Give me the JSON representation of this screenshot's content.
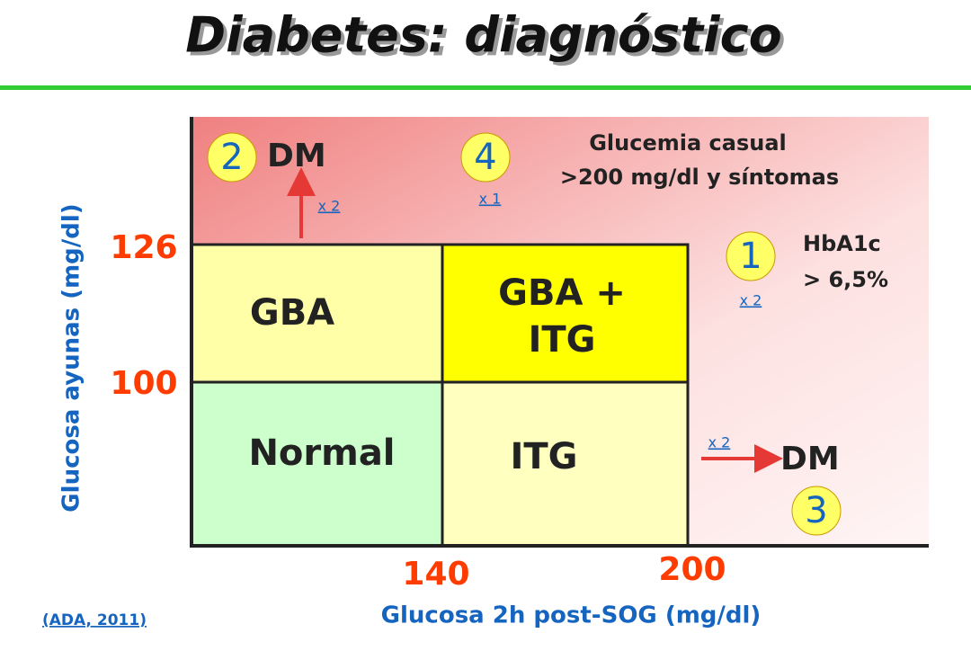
{
  "header": {
    "title": "Diabetes: diagnóstico"
  },
  "axes": {
    "y_label": "Glucosa ayunas (mg/dl)",
    "x_label": "Glucosa 2h post-SOG (mg/dl)",
    "y_ticks": [
      "126",
      "100"
    ],
    "x_ticks": [
      "140",
      "200"
    ]
  },
  "regions": {
    "gba": "GBA",
    "gba_itg": [
      "GBA +",
      "ITG"
    ],
    "normal": "Normal",
    "itg": "ITG"
  },
  "criteria": [
    {
      "number": "1",
      "label": [
        "HbA1c",
        "> 6,5%"
      ],
      "factor": "x 2"
    },
    {
      "number": "2",
      "label": "DM",
      "factor": "x 2"
    },
    {
      "number": "3",
      "label": "DM",
      "factor": "x 2"
    },
    {
      "number": "4",
      "label": [
        "Glucemia casual",
        ">200 mg/dl y síntomas"
      ],
      "factor": "x 1"
    }
  ],
  "source": "(ADA, 2011)"
}
